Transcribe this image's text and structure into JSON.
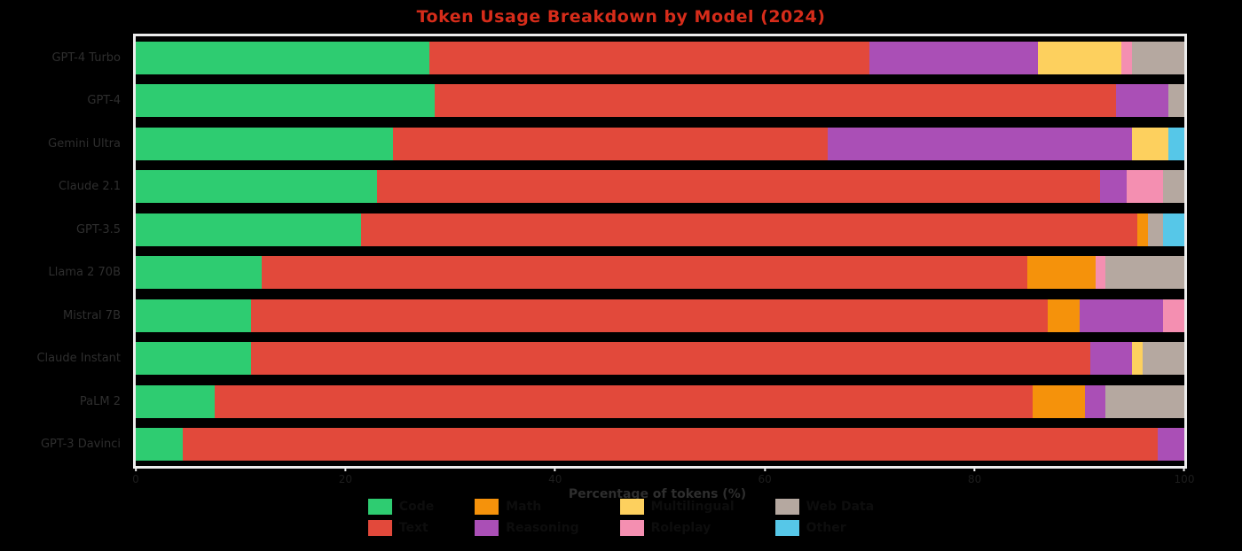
{
  "chart_data": {
    "type": "bar",
    "orientation": "horizontal-stacked",
    "title": "Token Usage Breakdown by Model (2024)",
    "xlabel": "Percentage of tokens (%)",
    "xlim": [
      0,
      100
    ],
    "xticks": [
      0,
      20,
      40,
      60,
      80,
      100
    ],
    "legend_position": "bottom",
    "grid": false,
    "legend": [
      {
        "key": "code",
        "label": "Code",
        "color": "#2ecc71"
      },
      {
        "key": "text",
        "label": "Text",
        "color": "#e2493b"
      },
      {
        "key": "math",
        "label": "Math",
        "color": "#f5920b"
      },
      {
        "key": "reasoning",
        "label": "Reasoning",
        "color": "#aa4fb6"
      },
      {
        "key": "multilingual",
        "label": "Multilingual",
        "color": "#fdd05e"
      },
      {
        "key": "roleplay",
        "label": "Roleplay",
        "color": "#f48fb1"
      },
      {
        "key": "web",
        "label": "Web Data",
        "color": "#b5a8a0"
      },
      {
        "key": "other",
        "label": "Other",
        "color": "#56c7e8"
      }
    ],
    "rows": [
      {
        "label": "GPT-4 Turbo",
        "values": [
          28,
          42,
          0,
          16,
          8,
          1,
          5,
          0
        ]
      },
      {
        "label": "GPT-4",
        "values": [
          28.5,
          65,
          0,
          5,
          0,
          0,
          1.5,
          0
        ]
      },
      {
        "label": "Gemini Ultra",
        "values": [
          24.5,
          41.5,
          0,
          29,
          3.5,
          0,
          0,
          1.5
        ]
      },
      {
        "label": "Claude 2.1",
        "values": [
          23,
          69,
          0,
          2.5,
          0,
          3.5,
          2,
          0
        ]
      },
      {
        "label": "GPT-3.5",
        "values": [
          21.5,
          74,
          1,
          0,
          0,
          0,
          1.5,
          2
        ]
      },
      {
        "label": "Llama 2 70B",
        "values": [
          12,
          73,
          6.5,
          0,
          0,
          1,
          7.5,
          0
        ]
      },
      {
        "label": "Mistral 7B",
        "values": [
          11,
          76,
          3,
          8,
          0,
          2,
          0,
          0
        ]
      },
      {
        "label": "Claude Instant",
        "values": [
          11,
          80,
          0,
          4,
          1,
          0,
          4,
          0
        ]
      },
      {
        "label": "PaLM 2",
        "values": [
          7.5,
          78,
          5,
          2,
          0,
          0,
          7.5,
          0
        ]
      },
      {
        "label": "GPT-3 Davinci",
        "values": [
          4.5,
          93,
          0,
          2.5,
          0,
          0,
          0,
          0
        ]
      }
    ]
  }
}
